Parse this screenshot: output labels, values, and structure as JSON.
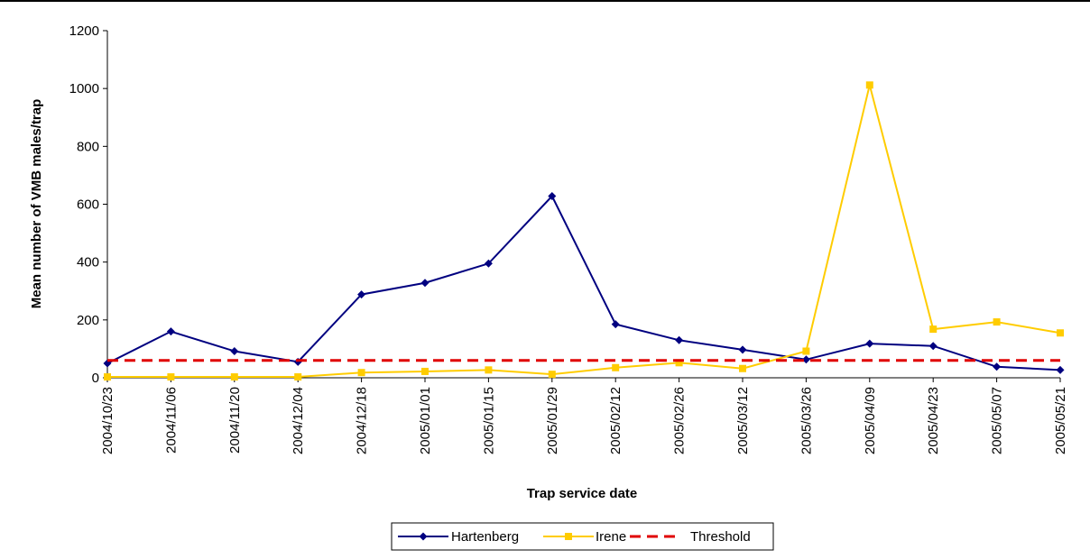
{
  "chart_data": {
    "type": "line",
    "title": "",
    "xlabel": "Trap service date",
    "ylabel": "Mean number of VMB males/trap",
    "ylim": [
      0,
      1200
    ],
    "yticks": [
      "0",
      "200",
      "400",
      "600",
      "800",
      "1000",
      "1200"
    ],
    "categories": [
      "2004/10/23",
      "2004/11/06",
      "2004/11/20",
      "2004/12/04",
      "2004/12/18",
      "2005/01/01",
      "2005/01/15",
      "2005/01/29",
      "2005/02/12",
      "2005/02/26",
      "2005/03/12",
      "2005/03/26",
      "2005/04/09",
      "2005/04/23",
      "2005/05/07",
      "2005/05/21"
    ],
    "grid": false,
    "legend_position": "bottom",
    "series": [
      {
        "name": "Hartenberg",
        "color": "#000080",
        "marker": "diamond",
        "values": [
          50,
          160,
          92,
          55,
          288,
          328,
          395,
          628,
          185,
          130,
          97,
          63,
          118,
          110,
          38,
          27
        ]
      },
      {
        "name": "Irene",
        "color": "#FFCC00",
        "marker": "square",
        "values": [
          3,
          3,
          3,
          3,
          18,
          22,
          27,
          12,
          35,
          52,
          32,
          92,
          1012,
          168,
          193,
          155
        ]
      },
      {
        "name": "Threshold",
        "color": "#E00000",
        "style": "dashed",
        "values": [
          60,
          60,
          60,
          60,
          60,
          60,
          60,
          60,
          60,
          60,
          60,
          60,
          60,
          60,
          60,
          60
        ]
      }
    ]
  }
}
